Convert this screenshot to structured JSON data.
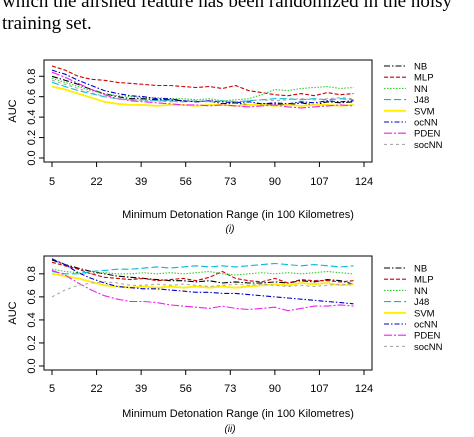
{
  "header": {
    "line1": "which the airshed feature has been randomized in the noisy",
    "line2": "training set."
  },
  "colors": {
    "NB": "#000000",
    "MLP": "#cc0000",
    "NN": "#33cc33",
    "J48": "#00bbdd",
    "SVM": "#ffee00",
    "ocNN": "#0000cc",
    "PDEN": "#ee22ee",
    "socNN": "#aaaaaa"
  },
  "chart_data": [
    {
      "type": "line",
      "panel_label": "(i)",
      "xlabel": "Minimum Detonation Range (in 100 Kilometres)",
      "ylabel": "AUC",
      "x_ticks": [
        5,
        22,
        39,
        56,
        73,
        90,
        107,
        124
      ],
      "y_ticks": [
        "0.0",
        "0.2",
        "0.4",
        "0.6",
        "0.8"
      ],
      "xlim": [
        5,
        124
      ],
      "ylim": [
        0,
        0.92
      ],
      "x": [
        5,
        10,
        15,
        20,
        25,
        30,
        35,
        40,
        45,
        50,
        55,
        60,
        65,
        70,
        75,
        80,
        85,
        90,
        95,
        100,
        105,
        110,
        115,
        120
      ],
      "legend": [
        "NB",
        "MLP",
        "NN",
        "J48",
        "SVM",
        "ocNN",
        "PDEN",
        "socNN"
      ],
      "series": [
        {
          "name": "NB",
          "values": [
            0.8,
            0.76,
            0.72,
            0.67,
            0.63,
            0.6,
            0.58,
            0.58,
            0.57,
            0.57,
            0.56,
            0.55,
            0.56,
            0.53,
            0.54,
            0.52,
            0.53,
            0.53,
            0.52,
            0.54,
            0.52,
            0.55,
            0.54,
            0.55
          ]
        },
        {
          "name": "MLP",
          "values": [
            0.9,
            0.86,
            0.8,
            0.77,
            0.76,
            0.74,
            0.73,
            0.72,
            0.71,
            0.71,
            0.7,
            0.69,
            0.7,
            0.68,
            0.71,
            0.66,
            0.64,
            0.62,
            0.61,
            0.63,
            0.61,
            0.64,
            0.62,
            0.63
          ]
        },
        {
          "name": "NN",
          "values": [
            0.78,
            0.74,
            0.7,
            0.66,
            0.63,
            0.61,
            0.6,
            0.59,
            0.59,
            0.58,
            0.58,
            0.57,
            0.58,
            0.56,
            0.57,
            0.58,
            0.62,
            0.67,
            0.66,
            0.68,
            0.69,
            0.7,
            0.68,
            0.69
          ]
        },
        {
          "name": "J48",
          "values": [
            0.74,
            0.7,
            0.66,
            0.63,
            0.6,
            0.58,
            0.57,
            0.57,
            0.56,
            0.56,
            0.55,
            0.56,
            0.55,
            0.56,
            0.55,
            0.56,
            0.57,
            0.58,
            0.58,
            0.57,
            0.58,
            0.57,
            0.58,
            0.57
          ]
        },
        {
          "name": "SVM",
          "values": [
            0.7,
            0.67,
            0.63,
            0.59,
            0.55,
            0.53,
            0.52,
            0.52,
            0.51,
            0.52,
            0.52,
            0.51,
            0.52,
            0.52,
            0.51,
            0.52,
            0.52,
            0.51,
            0.52,
            0.51,
            0.52,
            0.52,
            0.51,
            0.52
          ]
        },
        {
          "name": "ocNN",
          "values": [
            0.86,
            0.82,
            0.76,
            0.71,
            0.66,
            0.63,
            0.61,
            0.6,
            0.58,
            0.58,
            0.56,
            0.55,
            0.56,
            0.55,
            0.54,
            0.55,
            0.53,
            0.54,
            0.53,
            0.55,
            0.54,
            0.56,
            0.55,
            0.56
          ]
        },
        {
          "name": "PDEN",
          "values": [
            0.84,
            0.79,
            0.73,
            0.67,
            0.62,
            0.58,
            0.56,
            0.55,
            0.54,
            0.53,
            0.52,
            0.52,
            0.51,
            0.52,
            0.51,
            0.5,
            0.51,
            0.52,
            0.5,
            0.49,
            0.5,
            0.51,
            0.52,
            0.51
          ]
        },
        {
          "name": "socNN",
          "values": [
            0.76,
            0.72,
            0.68,
            0.64,
            0.6,
            0.58,
            0.57,
            0.56,
            0.56,
            0.55,
            0.55,
            0.56,
            0.55,
            0.56,
            0.55,
            0.56,
            0.57,
            0.56,
            0.57,
            0.58,
            0.57,
            0.58,
            0.59,
            0.58
          ]
        }
      ]
    },
    {
      "type": "line",
      "panel_label": "(ii)",
      "xlabel": "Minimum Detonation Range (in 100 Kilometres)",
      "ylabel": "AUC",
      "x_ticks": [
        5,
        22,
        39,
        56,
        73,
        90,
        107,
        124
      ],
      "y_ticks": [
        "0.0",
        "0.2",
        "0.4",
        "0.6",
        "0.8"
      ],
      "xlim": [
        5,
        124
      ],
      "ylim": [
        0,
        0.92
      ],
      "x": [
        5,
        10,
        15,
        20,
        25,
        30,
        35,
        40,
        45,
        50,
        55,
        60,
        65,
        70,
        75,
        80,
        85,
        90,
        95,
        100,
        105,
        110,
        115,
        120
      ],
      "legend": [
        "NB",
        "MLP",
        "NN",
        "J48",
        "SVM",
        "ocNN",
        "PDEN",
        "socNN"
      ],
      "series": [
        {
          "name": "NB",
          "values": [
            0.92,
            0.88,
            0.85,
            0.82,
            0.8,
            0.78,
            0.77,
            0.76,
            0.75,
            0.74,
            0.74,
            0.73,
            0.74,
            0.72,
            0.73,
            0.72,
            0.72,
            0.73,
            0.72,
            0.74,
            0.73,
            0.75,
            0.74,
            0.71
          ]
        },
        {
          "name": "MLP",
          "values": [
            0.9,
            0.87,
            0.84,
            0.8,
            0.77,
            0.76,
            0.75,
            0.76,
            0.74,
            0.75,
            0.76,
            0.74,
            0.77,
            0.82,
            0.76,
            0.74,
            0.73,
            0.76,
            0.72,
            0.75,
            0.74,
            0.74,
            0.73,
            0.74
          ]
        },
        {
          "name": "NN",
          "values": [
            0.84,
            0.82,
            0.81,
            0.8,
            0.81,
            0.8,
            0.8,
            0.81,
            0.8,
            0.81,
            0.8,
            0.81,
            0.82,
            0.8,
            0.79,
            0.8,
            0.81,
            0.8,
            0.81,
            0.8,
            0.81,
            0.82,
            0.81,
            0.8
          ]
        },
        {
          "name": "J48",
          "values": [
            0.82,
            0.8,
            0.8,
            0.82,
            0.83,
            0.84,
            0.84,
            0.85,
            0.86,
            0.85,
            0.86,
            0.87,
            0.86,
            0.87,
            0.86,
            0.87,
            0.88,
            0.89,
            0.88,
            0.87,
            0.88,
            0.87,
            0.86,
            0.87
          ]
        },
        {
          "name": "SVM",
          "values": [
            0.8,
            0.78,
            0.76,
            0.73,
            0.7,
            0.69,
            0.68,
            0.69,
            0.68,
            0.69,
            0.68,
            0.69,
            0.68,
            0.69,
            0.68,
            0.69,
            0.7,
            0.71,
            0.7,
            0.72,
            0.71,
            0.72,
            0.7,
            0.71
          ]
        },
        {
          "name": "ocNN",
          "values": [
            0.93,
            0.88,
            0.81,
            0.76,
            0.72,
            0.69,
            0.68,
            0.67,
            0.67,
            0.66,
            0.65,
            0.64,
            0.64,
            0.63,
            0.63,
            0.62,
            0.61,
            0.6,
            0.59,
            0.58,
            0.57,
            0.56,
            0.55,
            0.54
          ]
        },
        {
          "name": "PDEN",
          "values": [
            0.83,
            0.79,
            0.72,
            0.66,
            0.61,
            0.58,
            0.56,
            0.56,
            0.55,
            0.53,
            0.52,
            0.51,
            0.5,
            0.52,
            0.5,
            0.49,
            0.5,
            0.51,
            0.48,
            0.5,
            0.52,
            0.52,
            0.53,
            0.52
          ]
        },
        {
          "name": "socNN",
          "values": [
            0.6,
            0.66,
            0.7,
            0.72,
            0.73,
            0.72,
            0.7,
            0.7,
            0.71,
            0.7,
            0.71,
            0.7,
            0.69,
            0.7,
            0.71,
            0.7,
            0.71,
            0.7,
            0.69,
            0.7,
            0.69,
            0.7,
            0.71,
            0.7
          ]
        }
      ]
    }
  ]
}
